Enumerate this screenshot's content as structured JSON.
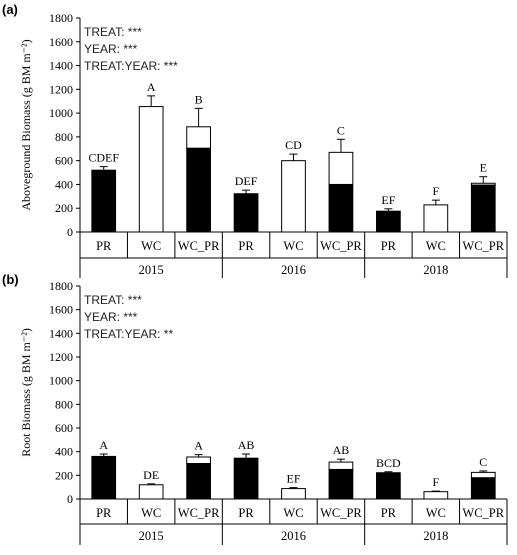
{
  "chart_data": [
    {
      "panel_label": "(a)",
      "type": "bar",
      "stacked": true,
      "ylabel": "Aboveground Biomass (g BM m⁻²)",
      "ylim": [
        0,
        1800
      ],
      "yticks": [
        0,
        200,
        400,
        600,
        800,
        1000,
        1200,
        1400,
        1600,
        1800
      ],
      "stats": [
        "TREAT: ***",
        "YEAR: ***",
        "TREAT:YEAR: ***"
      ],
      "groups": [
        "2015",
        "2016",
        "2018"
      ],
      "categories": [
        "PR",
        "WC",
        "WC_PR"
      ],
      "bars": [
        {
          "group": "2015",
          "category": "PR",
          "dark": 520,
          "light": 0,
          "error": 30,
          "letter": "CDEF"
        },
        {
          "group": "2015",
          "category": "WC",
          "dark": 0,
          "light": 1055,
          "error": 90,
          "letter": "A"
        },
        {
          "group": "2015",
          "category": "WC_PR",
          "dark": 705,
          "light": 180,
          "error": 155,
          "letter": "B"
        },
        {
          "group": "2016",
          "category": "PR",
          "dark": 322,
          "light": 0,
          "error": 30,
          "letter": "DEF"
        },
        {
          "group": "2016",
          "category": "WC",
          "dark": 0,
          "light": 600,
          "error": 55,
          "letter": "CD"
        },
        {
          "group": "2016",
          "category": "WC_PR",
          "dark": 400,
          "light": 270,
          "error": 110,
          "letter": "C"
        },
        {
          "group": "2018",
          "category": "PR",
          "dark": 175,
          "light": 0,
          "error": 20,
          "letter": "EF"
        },
        {
          "group": "2018",
          "category": "WC",
          "dark": 0,
          "light": 228,
          "error": 40,
          "letter": "F"
        },
        {
          "group": "2018",
          "category": "WC_PR",
          "dark": 395,
          "light": 15,
          "error": 55,
          "letter": "E"
        }
      ]
    },
    {
      "panel_label": "(b)",
      "type": "bar",
      "stacked": true,
      "ylabel": "Root Biomass (g BM m⁻²)",
      "ylim": [
        0,
        1800
      ],
      "yticks": [
        0,
        200,
        400,
        600,
        800,
        1000,
        1200,
        1400,
        1600,
        1800
      ],
      "stats": [
        "TREAT: ***",
        "YEAR: ***",
        "TREAT:YEAR: **"
      ],
      "groups": [
        "2015",
        "2016",
        "2018"
      ],
      "categories": [
        "PR",
        "WC",
        "WC_PR"
      ],
      "bars": [
        {
          "group": "2015",
          "category": "PR",
          "dark": 360,
          "light": 0,
          "error": 20,
          "letter": "A"
        },
        {
          "group": "2015",
          "category": "WC",
          "dark": 0,
          "light": 120,
          "error": 8,
          "letter": "DE"
        },
        {
          "group": "2015",
          "category": "WC_PR",
          "dark": 300,
          "light": 55,
          "error": 20,
          "letter": "A"
        },
        {
          "group": "2016",
          "category": "PR",
          "dark": 345,
          "light": 0,
          "error": 35,
          "letter": "AB"
        },
        {
          "group": "2016",
          "category": "WC",
          "dark": 0,
          "light": 88,
          "error": 8,
          "letter": "EF"
        },
        {
          "group": "2016",
          "category": "WC_PR",
          "dark": 250,
          "light": 62,
          "error": 25,
          "letter": "AB"
        },
        {
          "group": "2018",
          "category": "PR",
          "dark": 222,
          "light": 0,
          "error": 8,
          "letter": "BCD"
        },
        {
          "group": "2018",
          "category": "WC",
          "dark": 0,
          "light": 62,
          "error": 5,
          "letter": "F"
        },
        {
          "group": "2018",
          "category": "WC_PR",
          "dark": 180,
          "light": 45,
          "error": 12,
          "letter": "C"
        }
      ]
    }
  ],
  "colors": {
    "dark_fill": "#000000",
    "light_fill": "#ffffff",
    "stroke": "#000000",
    "stats_text": "#222222"
  }
}
